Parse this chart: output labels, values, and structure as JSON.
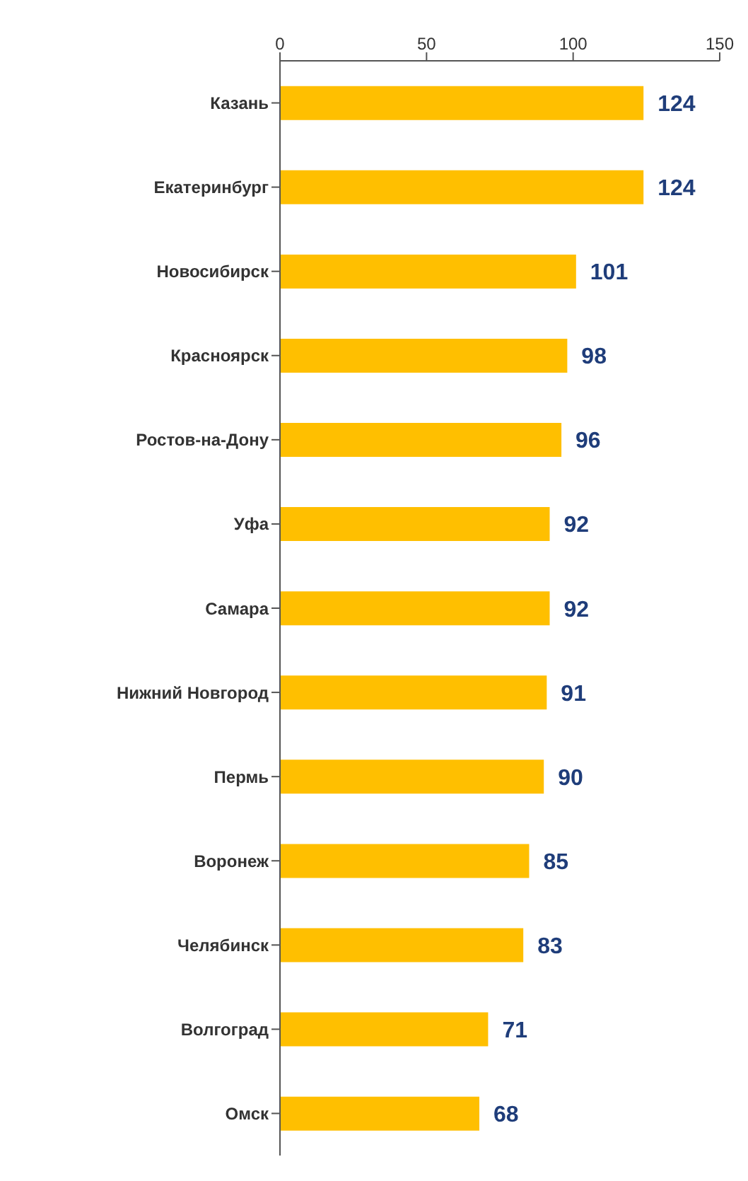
{
  "chart_data": {
    "type": "bar",
    "orientation": "horizontal",
    "categories": [
      "Казань",
      "Екатеринбург",
      "Новосибирск",
      "Красноярск",
      "Ростов-на-Дону",
      "Уфа",
      "Самара",
      "Нижний Новгород",
      "Пермь",
      "Воронеж",
      "Челябинск",
      "Волгоград",
      "Омск"
    ],
    "values": [
      124,
      124,
      101,
      98,
      96,
      92,
      92,
      91,
      90,
      85,
      83,
      71,
      68
    ],
    "color": "#ffbf00",
    "xlim": [
      0,
      150
    ],
    "xticks": [
      0,
      50,
      100,
      150
    ],
    "grid": false,
    "data_labels": true
  }
}
